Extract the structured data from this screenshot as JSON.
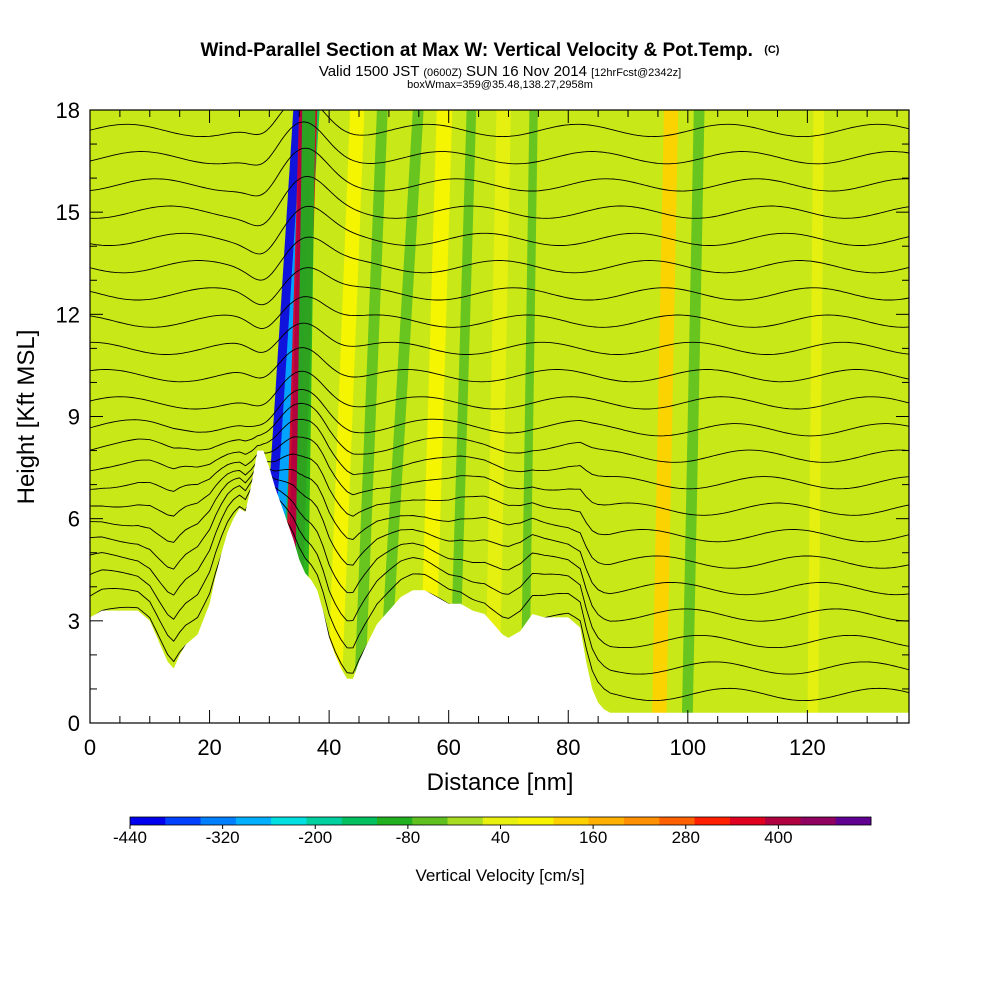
{
  "header": {
    "title": "Wind-Parallel Section at Max W: Vertical Velocity & Pot.Temp.",
    "title_mark": "(C)",
    "subtitle_valid": "Valid 1500 JST",
    "subtitle_zulu": "(0600Z)",
    "subtitle_date": "SUN 16 Nov 2014",
    "subtitle_fcst": "[12hrFcst@2342z]",
    "subtitle_box": "boxWmax=359@35.48,138.27,2958m"
  },
  "colors": {
    "scale": [
      "#0000ee",
      "#0040ff",
      "#0080ff",
      "#00b0ff",
      "#00e0e0",
      "#00d0a0",
      "#00c060",
      "#20b020",
      "#60c020",
      "#a8dc20",
      "#e8f010",
      "#f8f400",
      "#ffd000",
      "#ffb000",
      "#ff9000",
      "#ff6000",
      "#ff2000",
      "#e00020",
      "#b00040",
      "#900060",
      "#600090"
    ],
    "background": "#c8e818",
    "terrain": "#ffffff",
    "contour": "#000000"
  },
  "chart_data": {
    "type": "heatmap",
    "xlabel": "Distance [nm]",
    "ylabel": "Height [Kft MSL]",
    "xlim": [
      0,
      137
    ],
    "ylim": [
      0,
      18
    ],
    "x_ticks": [
      0,
      20,
      40,
      60,
      80,
      100,
      120
    ],
    "y_ticks": [
      0,
      3,
      6,
      9,
      12,
      15,
      18
    ],
    "colorbar": {
      "label": "Vertical Velocity [cm/s]",
      "range": [
        -440,
        520
      ],
      "tick_values": [
        -440,
        -320,
        -200,
        -80,
        40,
        160,
        280,
        400
      ]
    },
    "terrain_profile": {
      "x": [
        0,
        2,
        8,
        10,
        11,
        12,
        13,
        14,
        15,
        16,
        18,
        20,
        21,
        22,
        23,
        24,
        25,
        26,
        27,
        28,
        29,
        30,
        31,
        32,
        33,
        34,
        35,
        36,
        37,
        38,
        39,
        40,
        41,
        42,
        43,
        44,
        45,
        46,
        48,
        50,
        52,
        54,
        56,
        58,
        60,
        62,
        64,
        66,
        68,
        69,
        70,
        72,
        74,
        76,
        78,
        80,
        82,
        83,
        84,
        85,
        86,
        87,
        137
      ],
      "y": [
        3.1,
        3.3,
        3.3,
        3.0,
        2.6,
        2.2,
        1.8,
        1.6,
        2.0,
        2.3,
        2.6,
        3.5,
        4.3,
        5.0,
        5.6,
        6.0,
        6.3,
        6.2,
        7.0,
        8.0,
        8.0,
        7.5,
        6.9,
        6.4,
        5.9,
        5.4,
        4.8,
        4.4,
        4.2,
        3.9,
        3.3,
        2.5,
        2.0,
        1.6,
        1.3,
        1.3,
        1.8,
        2.2,
        2.9,
        3.3,
        3.7,
        3.9,
        3.9,
        3.7,
        3.5,
        3.5,
        3.3,
        3.2,
        2.8,
        2.6,
        2.5,
        2.7,
        3.2,
        3.1,
        3.1,
        3.1,
        2.8,
        1.8,
        1.0,
        0.6,
        0.4,
        0.3,
        0.3
      ]
    },
    "velocity_bands": [
      {
        "x_base": 27.5,
        "lean": 6.5,
        "width": 3.6,
        "w": -440
      },
      {
        "x_base": 29.0,
        "lean": 6.5,
        "width": 2.0,
        "w": -280
      },
      {
        "x_base": 30.5,
        "lean": 6.5,
        "width": 1.4,
        "w": -160
      },
      {
        "x_base": 32.0,
        "lean": 3.0,
        "width": 3.0,
        "w": 340
      },
      {
        "x_base": 32.6,
        "lean": 2.5,
        "width": 1.6,
        "w": 420
      },
      {
        "x_base": 34.0,
        "lean": 1.5,
        "width": 2.2,
        "w": -110
      },
      {
        "x_base": 39.5,
        "lean": 4.0,
        "width": 2.4,
        "w": 90
      },
      {
        "x_base": 44.0,
        "lean": 4.0,
        "width": 1.8,
        "w": -60
      },
      {
        "x_base": 48.0,
        "lean": 6.0,
        "width": 1.8,
        "w": -70
      },
      {
        "x_base": 55.0,
        "lean": 3.0,
        "width": 2.6,
        "w": 70
      },
      {
        "x_base": 60.0,
        "lean": 3.0,
        "width": 1.6,
        "w": -40
      },
      {
        "x_base": 66.0,
        "lean": 2.0,
        "width": 2.4,
        "w": 60
      },
      {
        "x_base": 72.0,
        "lean": 1.5,
        "width": 1.4,
        "w": -30
      },
      {
        "x_base": 94.0,
        "lean": 2.0,
        "width": 2.4,
        "w": 110
      },
      {
        "x_base": 99.0,
        "lean": 2.0,
        "width": 1.8,
        "w": -50
      },
      {
        "x_base": 120.0,
        "lean": 1.0,
        "width": 1.8,
        "w": 30
      }
    ],
    "potential_temperature_levels": [
      0.6,
      1.4,
      2.2,
      3.0,
      3.8,
      4.6,
      5.4,
      6.2,
      7.0,
      7.8,
      8.6,
      9.4,
      10.2,
      11.0,
      11.8,
      12.6,
      13.4,
      14.2,
      15.0,
      15.8,
      16.6,
      17.4,
      18.2,
      19.0
    ]
  }
}
